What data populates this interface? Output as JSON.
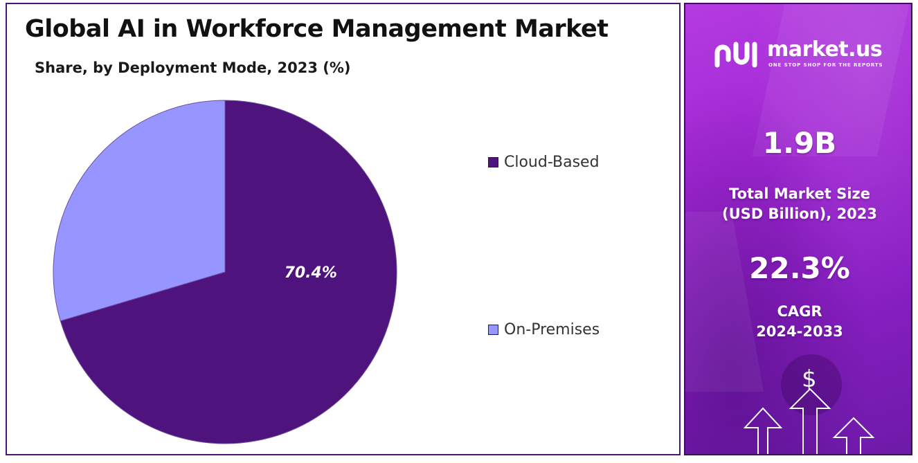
{
  "chart_data": {
    "type": "pie",
    "title": "Global AI in Workforce Management Market",
    "subtitle": "Share, by Deployment Mode, 2023 (%)",
    "slices": [
      {
        "label": "Cloud-Based",
        "value": 70.4,
        "color": "#4e137c",
        "data_label": "70.4%"
      },
      {
        "label": "On-Premises",
        "value": 29.6,
        "color": "#9795ff",
        "data_label": ""
      }
    ],
    "legend_position": "right"
  },
  "sidebar": {
    "brand_name": "market.us",
    "brand_tagline": "ONE STOP SHOP FOR THE REPORTS",
    "market_size_value": "1.9B",
    "market_size_label_line1": "Total Market Size",
    "market_size_label_line2": "(USD Billion), 2023",
    "cagr_value": "22.3%",
    "cagr_label_line1": "CAGR",
    "cagr_label_line2": "2024-2033",
    "dollar_symbol": "$",
    "accent_color": "#a126d4"
  }
}
